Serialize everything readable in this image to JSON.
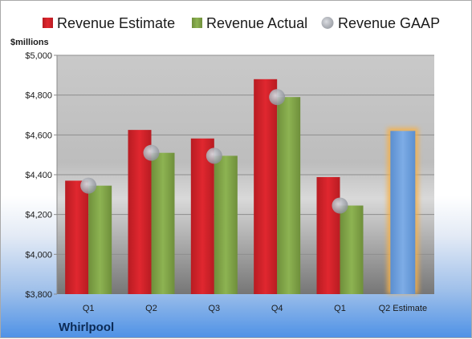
{
  "chart_data": {
    "type": "bar",
    "ylabel": "$millions",
    "company": "Whirlpool",
    "categories": [
      "Q1",
      "Q2",
      "Q3",
      "Q4",
      "Q1",
      "Q2 Estimate"
    ],
    "ylim": [
      3800,
      5000
    ],
    "yticks": [
      3800,
      4000,
      4200,
      4400,
      4600,
      4800,
      5000
    ],
    "ytick_labels": [
      "$3,800",
      "$4,000",
      "$4,200",
      "$4,400",
      "$4,600",
      "$4,800",
      "$5,000"
    ],
    "grid": true,
    "legend_position": "top",
    "series": [
      {
        "name": "Revenue Estimate",
        "values": [
          4370,
          4625,
          4582,
          4880,
          4388,
          null
        ]
      },
      {
        "name": "Revenue Actual",
        "values": [
          4345,
          4510,
          4495,
          4790,
          4245,
          null
        ]
      },
      {
        "name": "Revenue GAAP",
        "values": [
          4345,
          4510,
          4495,
          4790,
          4245,
          null
        ]
      }
    ],
    "estimate_bar": {
      "category": "Q2 Estimate",
      "value": 4620
    }
  },
  "colors": {
    "estimate": "#d0232a",
    "actual": "#7fa045",
    "gaap": "#c0c4cc",
    "estimate_bar": "#6d9fd9",
    "estimate_glow": "#f5b04a",
    "plot_bg_top": "#bfbfbf",
    "plot_bg_bottom": "#7a7a7a"
  }
}
